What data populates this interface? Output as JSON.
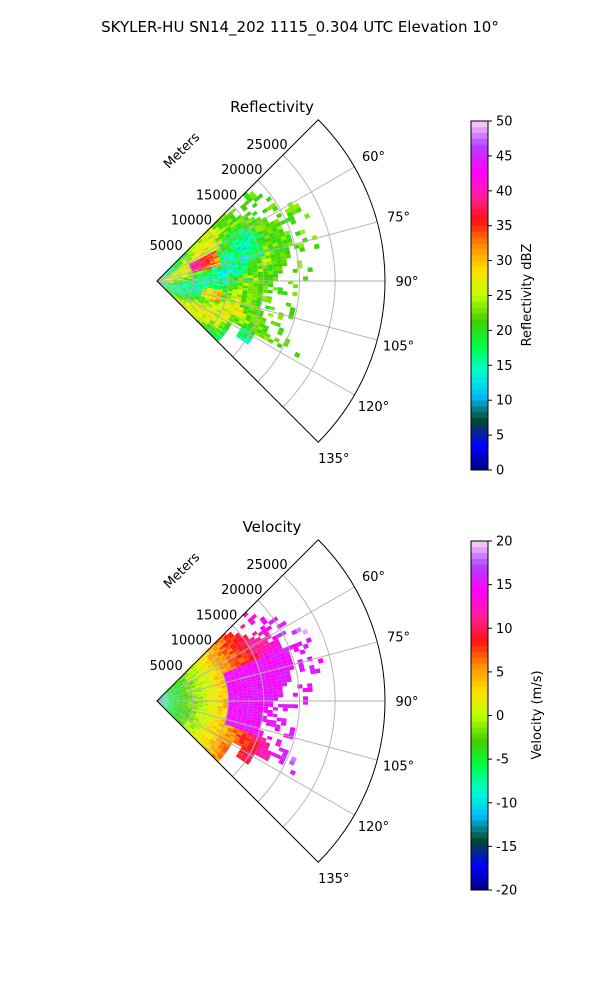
{
  "figure_title": "SKYLER-HU  SN14_202  1115_0.304 UTC Elevation 10°",
  "chart_data": [
    {
      "type": "heatmap",
      "title": "Reflectivity",
      "range_label": "Meters",
      "range_ticks": [
        "5000",
        "10000",
        "15000",
        "20000",
        "25000"
      ],
      "range_values": [
        5000,
        10000,
        15000,
        20000,
        25000
      ],
      "range_max": 32000,
      "azimuth_range_deg": [
        45,
        135
      ],
      "azimuth_ticks": [
        "60°",
        "75°",
        "90°",
        "105°",
        "120°",
        "135°"
      ],
      "azimuth_values": [
        60,
        75,
        90,
        105,
        120,
        135
      ],
      "grid": true,
      "colorbar": {
        "label": "Reflectivity dBZ",
        "min": 0,
        "max": 50,
        "ticks": [
          "0",
          "5",
          "10",
          "15",
          "20",
          "25",
          "30",
          "35",
          "40",
          "45",
          "50"
        ],
        "tick_values": [
          0,
          5,
          10,
          15,
          20,
          25,
          30,
          35,
          40,
          45,
          50
        ]
      }
    },
    {
      "type": "heatmap",
      "title": "Velocity",
      "range_label": "Meters",
      "range_ticks": [
        "5000",
        "10000",
        "15000",
        "20000",
        "25000"
      ],
      "range_values": [
        5000,
        10000,
        15000,
        20000,
        25000
      ],
      "range_max": 32000,
      "azimuth_range_deg": [
        45,
        135
      ],
      "azimuth_ticks": [
        "60°",
        "75°",
        "90°",
        "105°",
        "120°",
        "135°"
      ],
      "azimuth_values": [
        60,
        75,
        90,
        105,
        120,
        135
      ],
      "grid": true,
      "colorbar": {
        "label": "Velocity (m/s)",
        "min": -20,
        "max": 20,
        "ticks": [
          "-20",
          "-15",
          "-10",
          "-5",
          "0",
          "5",
          "10",
          "15",
          "20"
        ],
        "tick_values": [
          -20,
          -15,
          -10,
          -5,
          0,
          5,
          10,
          15,
          20
        ]
      }
    }
  ],
  "colors": {
    "colormap_stops": [
      "#000080",
      "#0000ff",
      "#004a2a",
      "#00c0ff",
      "#00ffd0",
      "#00ff40",
      "#40d000",
      "#c0ff00",
      "#ffe000",
      "#ff9000",
      "#ff1010",
      "#ff20a0",
      "#ff00ff",
      "#b040ff",
      "#ffd0ff"
    ],
    "grid": "#b0b0b0",
    "frame": "#000000"
  }
}
